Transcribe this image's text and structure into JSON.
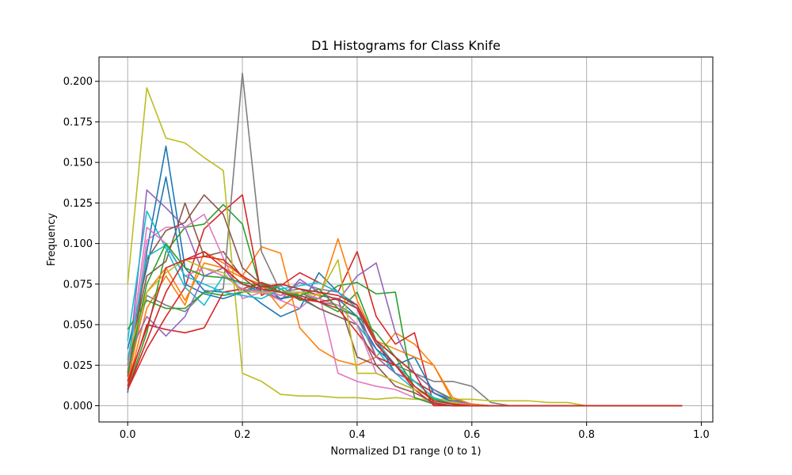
{
  "chart_data": {
    "type": "line",
    "title": "D1 Histograms for Class Knife",
    "xlabel": "Normalized D1 range (0 to 1)",
    "ylabel": "Frequency",
    "xlim": [
      -0.05,
      1.02
    ],
    "ylim": [
      -0.01,
      0.215
    ],
    "grid": true,
    "xticks": [
      0.0,
      0.2,
      0.4,
      0.6,
      0.8,
      1.0
    ],
    "xtick_labels": [
      "0.0",
      "0.2",
      "0.4",
      "0.6",
      "0.8",
      "1.0"
    ],
    "yticks": [
      0.0,
      0.025,
      0.05,
      0.075,
      0.1,
      0.125,
      0.15,
      0.175,
      0.2
    ],
    "ytick_labels": [
      "0.000",
      "0.025",
      "0.050",
      "0.075",
      "0.100",
      "0.125",
      "0.150",
      "0.175",
      "0.200"
    ],
    "x": [
      0.0,
      0.0333,
      0.0667,
      0.1,
      0.1333,
      0.1667,
      0.2,
      0.2333,
      0.2667,
      0.3,
      0.3333,
      0.3667,
      0.4,
      0.4333,
      0.4667,
      0.5,
      0.5333,
      0.5667,
      0.6,
      0.6333,
      0.6667,
      0.7,
      0.7333,
      0.7667,
      0.8,
      0.8333,
      0.8667,
      0.9,
      0.9333,
      0.9667
    ],
    "series": [
      {
        "color": "#1f77b4",
        "values": [
          0.008,
          0.095,
          0.16,
          0.085,
          0.071,
          0.07,
          0.072,
          0.063,
          0.055,
          0.06,
          0.082,
          0.07,
          0.062,
          0.04,
          0.02,
          0.015,
          0.008,
          0.003,
          0.001,
          0,
          0,
          0,
          0,
          0,
          0,
          0,
          0,
          0,
          0,
          0
        ]
      },
      {
        "color": "#ff7f0e",
        "values": [
          0.012,
          0.06,
          0.08,
          0.062,
          0.095,
          0.088,
          0.08,
          0.098,
          0.094,
          0.048,
          0.035,
          0.028,
          0.025,
          0.03,
          0.045,
          0.038,
          0.025,
          0.003,
          0.001,
          0,
          0,
          0,
          0,
          0,
          0,
          0,
          0,
          0,
          0,
          0
        ]
      },
      {
        "color": "#2ca02c",
        "values": [
          0.01,
          0.045,
          0.095,
          0.11,
          0.112,
          0.124,
          0.112,
          0.07,
          0.066,
          0.07,
          0.064,
          0.058,
          0.07,
          0.04,
          0.03,
          0.02,
          0.01,
          0.004,
          0.001,
          0,
          0,
          0,
          0,
          0,
          0,
          0,
          0,
          0,
          0,
          0
        ]
      },
      {
        "color": "#d62728",
        "values": [
          0.01,
          0.035,
          0.055,
          0.073,
          0.109,
          0.12,
          0.13,
          0.068,
          0.074,
          0.082,
          0.076,
          0.07,
          0.095,
          0.055,
          0.038,
          0.045,
          0.001,
          0,
          0,
          0,
          0,
          0,
          0,
          0,
          0,
          0,
          0,
          0,
          0,
          0
        ]
      },
      {
        "color": "#9467bd",
        "values": [
          0.02,
          0.133,
          0.122,
          0.11,
          0.08,
          0.085,
          0.07,
          0.072,
          0.065,
          0.078,
          0.07,
          0.065,
          0.08,
          0.088,
          0.045,
          0.02,
          0.01,
          0.003,
          0.001,
          0,
          0,
          0,
          0,
          0,
          0,
          0,
          0,
          0,
          0,
          0
        ]
      },
      {
        "color": "#8c564b",
        "values": [
          0.025,
          0.08,
          0.089,
          0.125,
          0.092,
          0.095,
          0.079,
          0.07,
          0.075,
          0.072,
          0.068,
          0.066,
          0.03,
          0.025,
          0.025,
          0.015,
          0.008,
          0.002,
          0,
          0,
          0,
          0,
          0,
          0,
          0,
          0,
          0,
          0,
          0,
          0
        ]
      },
      {
        "color": "#e377c2",
        "values": [
          0.015,
          0.102,
          0.11,
          0.11,
          0.118,
          0.091,
          0.066,
          0.07,
          0.065,
          0.06,
          0.07,
          0.02,
          0.015,
          0.012,
          0.01,
          0.005,
          0.002,
          0,
          0,
          0,
          0,
          0,
          0,
          0,
          0,
          0,
          0,
          0,
          0,
          0
        ]
      },
      {
        "color": "#7f7f7f",
        "values": [
          0.02,
          0.068,
          0.062,
          0.058,
          0.07,
          0.072,
          0.205,
          0.095,
          0.07,
          0.072,
          0.064,
          0.062,
          0.055,
          0.03,
          0.025,
          0.02,
          0.015,
          0.015,
          0.012,
          0.002,
          0,
          0,
          0,
          0,
          0,
          0,
          0,
          0,
          0,
          0
        ]
      },
      {
        "color": "#bcbd22",
        "values": [
          0.075,
          0.196,
          0.165,
          0.162,
          0.153,
          0.145,
          0.02,
          0.015,
          0.007,
          0.006,
          0.006,
          0.005,
          0.005,
          0.004,
          0.005,
          0.004,
          0.004,
          0.004,
          0.004,
          0.003,
          0.003,
          0.003,
          0.002,
          0.002,
          0,
          0,
          0,
          0,
          0,
          0
        ]
      },
      {
        "color": "#17becf",
        "values": [
          0.04,
          0.12,
          0.097,
          0.073,
          0.062,
          0.08,
          0.075,
          0.07,
          0.074,
          0.066,
          0.06,
          0.055,
          0.05,
          0.035,
          0.02,
          0.01,
          0.005,
          0.001,
          0,
          0,
          0,
          0,
          0,
          0,
          0,
          0,
          0,
          0,
          0,
          0
        ]
      },
      {
        "color": "#1f77b4",
        "values": [
          0.035,
          0.085,
          0.141,
          0.075,
          0.069,
          0.066,
          0.07,
          0.074,
          0.066,
          0.068,
          0.064,
          0.066,
          0.055,
          0.035,
          0.025,
          0.03,
          0.008,
          0.002,
          0,
          0,
          0,
          0,
          0,
          0,
          0,
          0,
          0,
          0,
          0,
          0
        ]
      },
      {
        "color": "#ff7f0e",
        "values": [
          0.015,
          0.07,
          0.085,
          0.065,
          0.088,
          0.085,
          0.079,
          0.075,
          0.06,
          0.07,
          0.066,
          0.103,
          0.065,
          0.04,
          0.035,
          0.03,
          0.025,
          0.005,
          0.001,
          0,
          0,
          0,
          0,
          0,
          0,
          0,
          0,
          0,
          0,
          0
        ]
      },
      {
        "color": "#2ca02c",
        "values": [
          0.047,
          0.065,
          0.06,
          0.06,
          0.07,
          0.068,
          0.07,
          0.076,
          0.072,
          0.065,
          0.066,
          0.074,
          0.076,
          0.069,
          0.07,
          0.005,
          0.001,
          0,
          0,
          0,
          0,
          0,
          0,
          0,
          0,
          0,
          0,
          0,
          0,
          0
        ]
      },
      {
        "color": "#d62728",
        "values": [
          0.012,
          0.05,
          0.047,
          0.045,
          0.048,
          0.07,
          0.072,
          0.076,
          0.07,
          0.068,
          0.064,
          0.06,
          0.045,
          0.03,
          0.025,
          0.01,
          0.001,
          0,
          0,
          0,
          0,
          0,
          0,
          0,
          0,
          0,
          0,
          0,
          0,
          0
        ]
      },
      {
        "color": "#9467bd",
        "values": [
          0.03,
          0.055,
          0.043,
          0.055,
          0.08,
          0.085,
          0.07,
          0.072,
          0.068,
          0.076,
          0.072,
          0.07,
          0.06,
          0.03,
          0.02,
          0.015,
          0.005,
          0.001,
          0,
          0,
          0,
          0,
          0,
          0,
          0,
          0,
          0,
          0,
          0,
          0
        ]
      },
      {
        "color": "#8c564b",
        "values": [
          0.018,
          0.09,
          0.108,
          0.113,
          0.13,
          0.118,
          0.085,
          0.075,
          0.07,
          0.067,
          0.06,
          0.055,
          0.05,
          0.025,
          0.012,
          0.008,
          0.002,
          0,
          0,
          0,
          0,
          0,
          0,
          0,
          0,
          0,
          0,
          0,
          0,
          0
        ]
      },
      {
        "color": "#e377c2",
        "values": [
          0.022,
          0.11,
          0.1,
          0.08,
          0.085,
          0.08,
          0.072,
          0.07,
          0.068,
          0.07,
          0.066,
          0.062,
          0.05,
          0.02,
          0.015,
          0.01,
          0.005,
          0.001,
          0,
          0,
          0,
          0,
          0,
          0,
          0,
          0,
          0,
          0,
          0,
          0
        ]
      },
      {
        "color": "#bcbd22",
        "values": [
          0.03,
          0.07,
          0.082,
          0.09,
          0.085,
          0.082,
          0.07,
          0.07,
          0.07,
          0.07,
          0.068,
          0.09,
          0.02,
          0.02,
          0.015,
          0.01,
          0.005,
          0.002,
          0,
          0,
          0,
          0,
          0,
          0,
          0,
          0,
          0,
          0,
          0,
          0
        ]
      },
      {
        "color": "#17becf",
        "values": [
          0.028,
          0.092,
          0.099,
          0.08,
          0.075,
          0.07,
          0.068,
          0.066,
          0.072,
          0.074,
          0.076,
          0.07,
          0.06,
          0.04,
          0.025,
          0.015,
          0.005,
          0.001,
          0,
          0,
          0,
          0,
          0,
          0,
          0,
          0,
          0,
          0,
          0,
          0
        ]
      },
      {
        "color": "#2ca02c",
        "values": [
          0.02,
          0.075,
          0.1,
          0.085,
          0.08,
          0.079,
          0.076,
          0.074,
          0.07,
          0.068,
          0.072,
          0.06,
          0.055,
          0.045,
          0.03,
          0.012,
          0.004,
          0.001,
          0,
          0,
          0,
          0,
          0,
          0,
          0,
          0,
          0,
          0,
          0,
          0
        ]
      },
      {
        "color": "#d62728",
        "values": [
          0.01,
          0.04,
          0.07,
          0.09,
          0.095,
          0.085,
          0.075,
          0.072,
          0.07,
          0.066,
          0.064,
          0.066,
          0.06,
          0.038,
          0.025,
          0.012,
          0.003,
          0.001,
          0,
          0,
          0,
          0,
          0,
          0,
          0,
          0,
          0,
          0,
          0,
          0
        ]
      },
      {
        "color": "#d62728",
        "values": [
          0.015,
          0.048,
          0.085,
          0.09,
          0.092,
          0.09,
          0.08,
          0.073,
          0.075,
          0.072,
          0.07,
          0.068,
          0.062,
          0.04,
          0.03,
          0.02,
          0.0,
          0.0,
          0,
          0,
          0,
          0,
          0,
          0,
          0,
          0,
          0,
          0,
          0,
          0
        ]
      }
    ]
  }
}
